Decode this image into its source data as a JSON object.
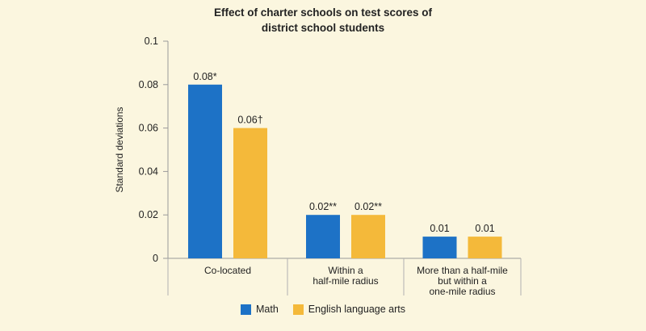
{
  "chart_data": {
    "type": "bar",
    "title_lines": [
      "Effect of charter schools on test scores of",
      "district school students"
    ],
    "ylabel": "Standard deviations",
    "ylim": [
      0,
      0.1
    ],
    "yticks": [
      "0",
      "0.02",
      "0.04",
      "0.06",
      "0.08",
      "0.1"
    ],
    "categories": [
      [
        "Co-located"
      ],
      [
        "Within a",
        "half-mile radius"
      ],
      [
        "More than a half-mile",
        "but within a",
        "one-mile radius"
      ]
    ],
    "series": [
      {
        "name": "Math",
        "color": "#1d72c6",
        "values": [
          0.08,
          0.02,
          0.01
        ],
        "labels": [
          "0.08*",
          "0.02**",
          "0.01"
        ]
      },
      {
        "name": "English language arts",
        "color": "#f4b93a",
        "values": [
          0.06,
          0.02,
          0.01
        ],
        "labels": [
          "0.06†",
          "0.02**",
          "0.01"
        ]
      }
    ],
    "legend_position": "bottom",
    "grid": false
  }
}
